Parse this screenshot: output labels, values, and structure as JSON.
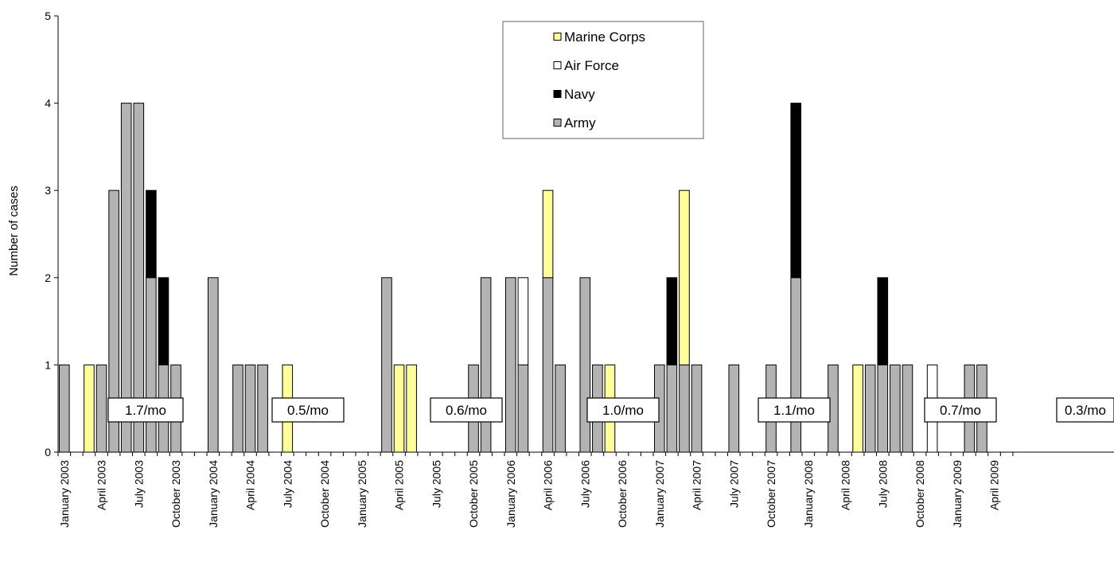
{
  "chart_data": {
    "type": "bar",
    "stacked": true,
    "ylabel": "Number of cases",
    "ylim": [
      0,
      5
    ],
    "yticks": [
      0,
      1,
      2,
      3,
      4,
      5
    ],
    "grid": false,
    "legend_position": "top-center",
    "x_start": "January 2003",
    "x_end": "May 2009",
    "x_tick_labels": [
      "January 2003",
      "April 2003",
      "July 2003",
      "October 2003",
      "January 2004",
      "April 2004",
      "July 2004",
      "October 2004",
      "January 2005",
      "April 2005",
      "July 2005",
      "October 2005",
      "January 2006",
      "April 2006",
      "July 2006",
      "October 2006",
      "January 2007",
      "April 2007",
      "July 2007",
      "October 2007",
      "January 2008",
      "April 2008",
      "July 2008",
      "October 2008",
      "January 2009",
      "April 2009"
    ],
    "legend": [
      {
        "name": "Marine Corps",
        "color": "#ffff99"
      },
      {
        "name": "Air Force",
        "color": "#ffffff"
      },
      {
        "name": "Navy",
        "color": "#000000"
      },
      {
        "name": "Army",
        "color": "#b3b3b3"
      }
    ],
    "series_order": [
      "Army",
      "Navy",
      "Air Force",
      "Marine Corps"
    ],
    "series_colors": {
      "Army": "#b3b3b3",
      "Navy": "#000000",
      "Air Force": "#ffffff",
      "Marine Corps": "#ffff99"
    },
    "months": [
      {
        "month": "January 2003",
        "Army": 1
      },
      {
        "month": "March 2003",
        "Marine Corps": 1
      },
      {
        "month": "April 2003",
        "Army": 1
      },
      {
        "month": "May 2003",
        "Army": 3
      },
      {
        "month": "June 2003",
        "Army": 4
      },
      {
        "month": "July 2003",
        "Army": 4
      },
      {
        "month": "August 2003",
        "Army": 2,
        "Navy": 1
      },
      {
        "month": "September 2003",
        "Army": 1,
        "Navy": 1
      },
      {
        "month": "October 2003",
        "Army": 1
      },
      {
        "month": "January 2004",
        "Army": 2
      },
      {
        "month": "March 2004",
        "Army": 1
      },
      {
        "month": "April 2004",
        "Army": 1
      },
      {
        "month": "May 2004",
        "Army": 1
      },
      {
        "month": "July 2004",
        "Marine Corps": 1
      },
      {
        "month": "March 2005",
        "Army": 2
      },
      {
        "month": "April 2005",
        "Marine Corps": 1
      },
      {
        "month": "May 2005",
        "Marine Corps": 1
      },
      {
        "month": "October 2005",
        "Army": 1
      },
      {
        "month": "November 2005",
        "Army": 2
      },
      {
        "month": "January 2006",
        "Army": 2
      },
      {
        "month": "February 2006",
        "Army": 1,
        "Air Force": 1
      },
      {
        "month": "April 2006",
        "Army": 2,
        "Marine Corps": 1
      },
      {
        "month": "May 2006",
        "Army": 1
      },
      {
        "month": "July 2006",
        "Army": 2
      },
      {
        "month": "August 2006",
        "Army": 1
      },
      {
        "month": "September 2006",
        "Marine Corps": 1
      },
      {
        "month": "January 2007",
        "Army": 1
      },
      {
        "month": "February 2007",
        "Army": 1,
        "Navy": 1
      },
      {
        "month": "March 2007",
        "Army": 1,
        "Marine Corps": 2
      },
      {
        "month": "April 2007",
        "Army": 1
      },
      {
        "month": "July 2007",
        "Army": 1
      },
      {
        "month": "October 2007",
        "Army": 1
      },
      {
        "month": "December 2007",
        "Army": 2,
        "Navy": 2
      },
      {
        "month": "March 2008",
        "Army": 1
      },
      {
        "month": "May 2008",
        "Marine Corps": 1
      },
      {
        "month": "June 2008",
        "Army": 1
      },
      {
        "month": "July 2008",
        "Army": 1,
        "Navy": 1
      },
      {
        "month": "August 2008",
        "Army": 1
      },
      {
        "month": "September 2008",
        "Army": 1
      },
      {
        "month": "November 2008",
        "Air Force": 1
      },
      {
        "month": "February 2009",
        "Army": 1
      },
      {
        "month": "March 2009",
        "Army": 1
      }
    ],
    "annotations": [
      {
        "text": "1.7/mo",
        "period": "2003"
      },
      {
        "text": "0.5/mo",
        "period": "2004"
      },
      {
        "text": "0.6/mo",
        "period": "2005"
      },
      {
        "text": "1.0/mo",
        "period": "2006"
      },
      {
        "text": "1.1/mo",
        "period": "2007"
      },
      {
        "text": "0.7/mo",
        "period": "2008"
      },
      {
        "text": "0.3/mo",
        "period": "2009"
      }
    ]
  }
}
